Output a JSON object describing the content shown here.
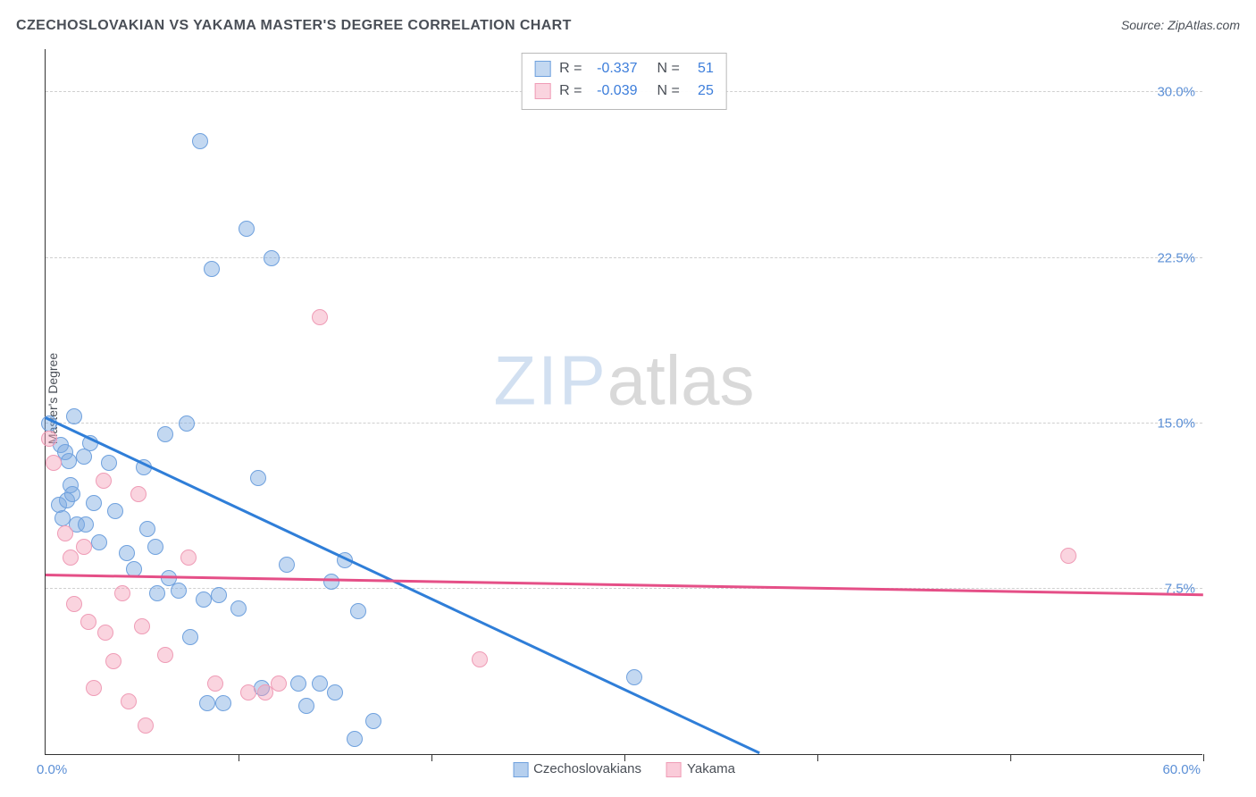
{
  "title": "CZECHOSLOVAKIAN VS YAKAMA MASTER'S DEGREE CORRELATION CHART",
  "source": "Source: ZipAtlas.com",
  "ylabel": "Master's Degree",
  "watermark_a": "ZIP",
  "watermark_b": "atlas",
  "chart": {
    "type": "scatter",
    "xlim": [
      0,
      60
    ],
    "ylim": [
      0,
      32
    ],
    "xticks": [
      0,
      10,
      20,
      30,
      40,
      50,
      60
    ],
    "yticks": [
      7.5,
      15.0,
      22.5,
      30.0
    ],
    "ytick_labels": [
      "7.5%",
      "15.0%",
      "22.5%",
      "30.0%"
    ],
    "x_origin_label": "0.0%",
    "x_max_label": "60.0%",
    "background_color": "#ffffff",
    "grid_color": "#cfcfcf",
    "axis_color": "#333333",
    "marker_radius": 9,
    "marker_border_width": 1,
    "series": [
      {
        "name": "Czechoslovakians",
        "fill_color": "rgba(121,168,224,0.45)",
        "border_color": "#6fa1de",
        "trend_color": "#2f7ed8",
        "correlation_r": "-0.337",
        "correlation_n": "51",
        "trend": {
          "x1": 0,
          "y1": 15.2,
          "x2": 37,
          "y2": 0
        },
        "points": [
          [
            0.2,
            15.0
          ],
          [
            0.8,
            14.0
          ],
          [
            1.0,
            13.7
          ],
          [
            1.2,
            13.3
          ],
          [
            1.3,
            12.2
          ],
          [
            1.5,
            15.3
          ],
          [
            0.7,
            11.3
          ],
          [
            1.1,
            11.5
          ],
          [
            1.4,
            11.8
          ],
          [
            2.0,
            13.5
          ],
          [
            2.3,
            14.1
          ],
          [
            2.5,
            11.4
          ],
          [
            0.9,
            10.7
          ],
          [
            1.6,
            10.4
          ],
          [
            2.1,
            10.4
          ],
          [
            2.8,
            9.6
          ],
          [
            3.3,
            13.2
          ],
          [
            3.6,
            11.0
          ],
          [
            4.2,
            9.1
          ],
          [
            4.6,
            8.4
          ],
          [
            5.1,
            13.0
          ],
          [
            5.3,
            10.2
          ],
          [
            5.7,
            9.4
          ],
          [
            5.8,
            7.3
          ],
          [
            6.2,
            14.5
          ],
          [
            6.4,
            8.0
          ],
          [
            6.9,
            7.4
          ],
          [
            7.3,
            15.0
          ],
          [
            7.5,
            5.3
          ],
          [
            8.2,
            7.0
          ],
          [
            8.4,
            2.3
          ],
          [
            8.6,
            22.0
          ],
          [
            9.0,
            7.2
          ],
          [
            9.2,
            2.3
          ],
          [
            10.0,
            6.6
          ],
          [
            10.4,
            23.8
          ],
          [
            11.0,
            12.5
          ],
          [
            11.2,
            3.0
          ],
          [
            11.7,
            22.5
          ],
          [
            12.5,
            8.6
          ],
          [
            13.1,
            3.2
          ],
          [
            13.5,
            2.2
          ],
          [
            14.2,
            3.2
          ],
          [
            14.8,
            7.8
          ],
          [
            15.0,
            2.8
          ],
          [
            15.5,
            8.8
          ],
          [
            16.0,
            0.7
          ],
          [
            16.2,
            6.5
          ],
          [
            17.0,
            1.5
          ],
          [
            8.0,
            27.8
          ],
          [
            30.5,
            3.5
          ]
        ]
      },
      {
        "name": "Yakama",
        "fill_color": "rgba(245,160,185,0.45)",
        "border_color": "#ef9cb6",
        "trend_color": "#e54f87",
        "correlation_r": "-0.039",
        "correlation_n": "25",
        "trend": {
          "x1": 0,
          "y1": 8.1,
          "x2": 60,
          "y2": 7.2
        },
        "points": [
          [
            0.2,
            14.3
          ],
          [
            0.4,
            13.2
          ],
          [
            1.0,
            10.0
          ],
          [
            1.3,
            8.9
          ],
          [
            1.5,
            6.8
          ],
          [
            2.0,
            9.4
          ],
          [
            2.2,
            6.0
          ],
          [
            2.5,
            3.0
          ],
          [
            3.0,
            12.4
          ],
          [
            3.1,
            5.5
          ],
          [
            3.5,
            4.2
          ],
          [
            4.0,
            7.3
          ],
          [
            4.3,
            2.4
          ],
          [
            4.8,
            11.8
          ],
          [
            5.0,
            5.8
          ],
          [
            5.2,
            1.3
          ],
          [
            6.2,
            4.5
          ],
          [
            7.4,
            8.9
          ],
          [
            8.8,
            3.2
          ],
          [
            10.5,
            2.8
          ],
          [
            11.4,
            2.8
          ],
          [
            12.1,
            3.2
          ],
          [
            14.2,
            19.8
          ],
          [
            22.5,
            4.3
          ],
          [
            53.0,
            9.0
          ]
        ]
      }
    ],
    "bottom_legend": [
      {
        "label": "Czechoslovakians",
        "fill": "rgba(121,168,224,0.55)",
        "border": "#6fa1de"
      },
      {
        "label": "Yakama",
        "fill": "rgba(245,160,185,0.55)",
        "border": "#ef9cb6"
      }
    ]
  }
}
